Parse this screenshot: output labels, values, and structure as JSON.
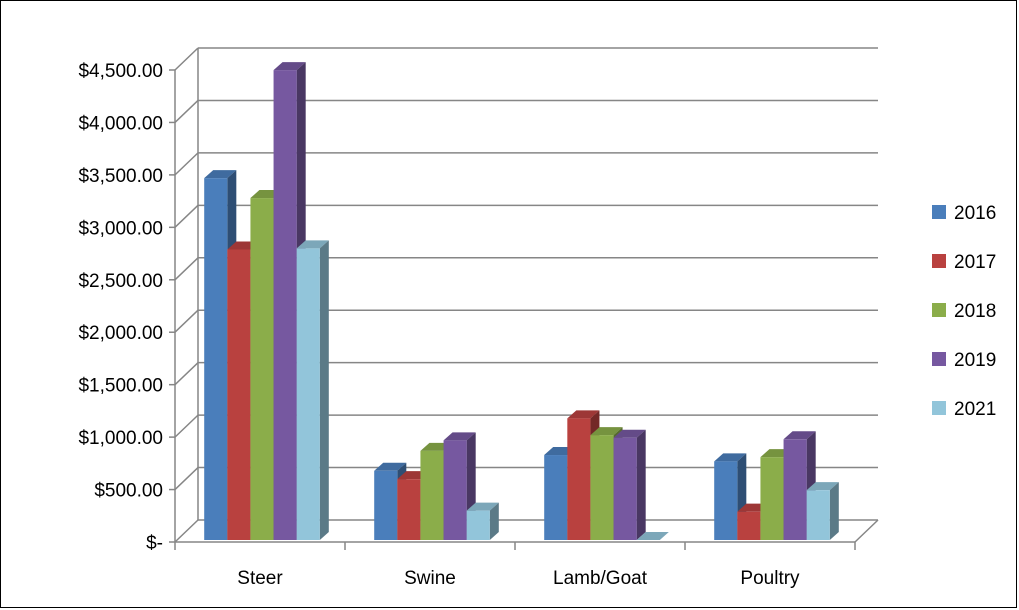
{
  "chart_data": {
    "type": "bar",
    "categories": [
      "Steer",
      "Swine",
      "Lamb/Goat",
      "Poultry"
    ],
    "series": [
      {
        "name": "2016",
        "color": "#4a7ebb",
        "values": [
          3450,
          660,
          810,
          750
        ]
      },
      {
        "name": "2017",
        "color": "#b9413f",
        "values": [
          2770,
          580,
          1160,
          270
        ]
      },
      {
        "name": "2018",
        "color": "#8bad4a",
        "values": [
          3260,
          850,
          1000,
          790
        ]
      },
      {
        "name": "2019",
        "color": "#7658a0",
        "values": [
          4480,
          950,
          975,
          960
        ]
      },
      {
        "name": "2021",
        "color": "#92c5da",
        "values": [
          2780,
          280,
          0,
          475
        ]
      }
    ],
    "y_ticks": [
      "$-",
      "$500.00",
      "$1,000.00",
      "$1,500.00",
      "$2,000.00",
      "$2,500.00",
      "$3,000.00",
      "$3,500.00",
      "$4,000.00",
      "$4,500.00"
    ],
    "ylim": [
      0,
      4500
    ],
    "grid": true,
    "legend_position": "right",
    "style": "3d-clustered-column"
  }
}
